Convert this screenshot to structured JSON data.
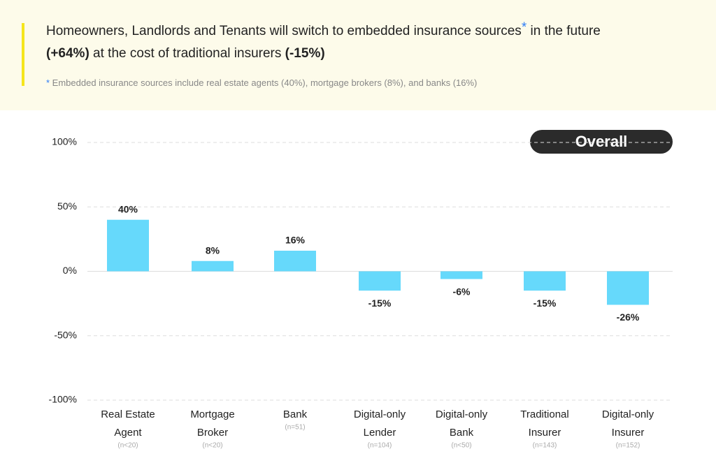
{
  "header": {
    "title_line1": [
      "Homeowners, Landlords and Tenants will switch to embedded insurance sources",
      "*",
      " in the future"
    ],
    "title_line2": [
      "(+64%)",
      " at the cost of traditional insurers ",
      "(-15%)"
    ],
    "footnote": [
      "*",
      " Embedded insurance sources include real estate agents (40%), mortgage brokers (8%), and banks (16%)"
    ]
  },
  "chart_data": {
    "type": "bar",
    "badge": "Overall",
    "categories": [
      [
        "Real Estate",
        "Agent"
      ],
      [
        "Mortgage",
        "Broker"
      ],
      [
        "Bank"
      ],
      [
        "Digital-only",
        "Lender"
      ],
      [
        "Digital-only",
        "Bank"
      ],
      [
        "Traditional",
        "Insurer"
      ],
      [
        "Digital-only",
        "Insurer"
      ]
    ],
    "sample_sizes": [
      "(n<20)",
      "(n<20)",
      "(n=51)",
      "(n=104)",
      "(n<50)",
      "(n=143)",
      "(n=152)"
    ],
    "values": [
      40,
      8,
      16,
      -15,
      -6,
      -15,
      -26
    ],
    "value_labels": [
      "40%",
      "8%",
      "16%",
      "-15%",
      "-6%",
      "-15%",
      "-26%"
    ],
    "color": "#66d9fb",
    "ylim": [
      -100,
      100
    ],
    "yticks": [
      {
        "value": -100,
        "label": "-100%"
      },
      {
        "value": -50,
        "label": "-50%"
      },
      {
        "value": 0,
        "label": "0%"
      },
      {
        "value": 50,
        "label": "50%"
      },
      {
        "value": 100,
        "label": "100%"
      }
    ],
    "grid": true
  }
}
